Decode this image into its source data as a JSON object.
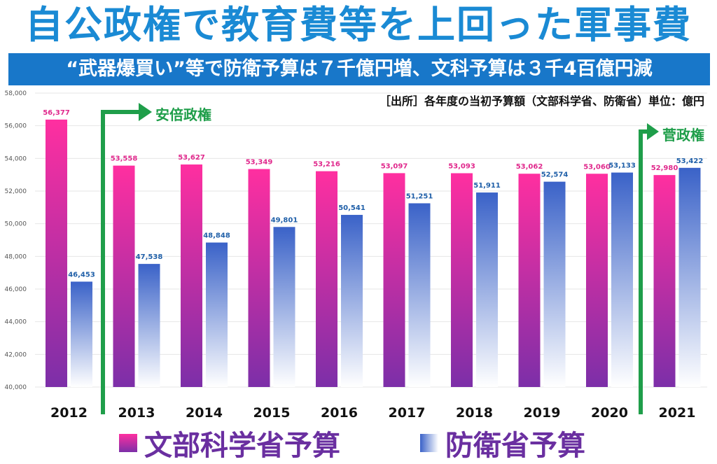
{
  "header": {
    "title": "自公政権で教育費等を上回った軍事費",
    "subtitle": "“武器爆買い”等で防衛予算は７千億円増、文科予算は３千4百億円減",
    "source": "［出所］各年度の当初予算額（文部科学省、防衛省）単位：億円"
  },
  "annotations": {
    "abe": "安倍政権",
    "suga": "菅政権"
  },
  "colors": {
    "title": "#1a8ad4",
    "banner": "#1877c9",
    "mext_top": "#ff2fa0",
    "mext_bottom": "#7c2fa8",
    "mod_top": "#3a62c8",
    "mod_bottom": "#ffffff",
    "mext_label": "#e0288c",
    "mod_label": "#1f5fa8",
    "annotation": "#1f9e4a",
    "legend_text": "#6a2fa0"
  },
  "chart_data": {
    "type": "bar",
    "categories": [
      "2012",
      "2013",
      "2014",
      "2015",
      "2016",
      "2017",
      "2018",
      "2019",
      "2020",
      "2021"
    ],
    "series": [
      {
        "name": "文部科学省予算",
        "values": [
          56377,
          53558,
          53627,
          53349,
          53216,
          53097,
          53093,
          53062,
          53060,
          52980
        ],
        "labels": [
          "56,377",
          "53,558",
          "53,627",
          "53,349",
          "53,216",
          "53,097",
          "53,093",
          "53,062",
          "53,060",
          "52,980"
        ]
      },
      {
        "name": "防衛省予算",
        "values": [
          46453,
          47538,
          48848,
          49801,
          50541,
          51251,
          51911,
          52574,
          53133,
          53422
        ],
        "labels": [
          "46,453",
          "47,538",
          "48,848",
          "49,801",
          "50,541",
          "51,251",
          "51,911",
          "52,574",
          "53,133",
          "53,422"
        ]
      }
    ],
    "ylim": [
      40000,
      58000
    ],
    "yticks": [
      40000,
      42000,
      44000,
      46000,
      48000,
      50000,
      52000,
      54000,
      56000,
      58000
    ],
    "ytick_labels": [
      "40,000",
      "42,000",
      "44,000",
      "46,000",
      "48,000",
      "50,000",
      "52,000",
      "54,000",
      "56,000",
      "58,000"
    ],
    "grid": true,
    "legend": "bottom",
    "annotations": [
      {
        "text": "安倍政権",
        "from_category": "2013"
      },
      {
        "text": "菅政権",
        "from_category": "2021"
      }
    ]
  }
}
